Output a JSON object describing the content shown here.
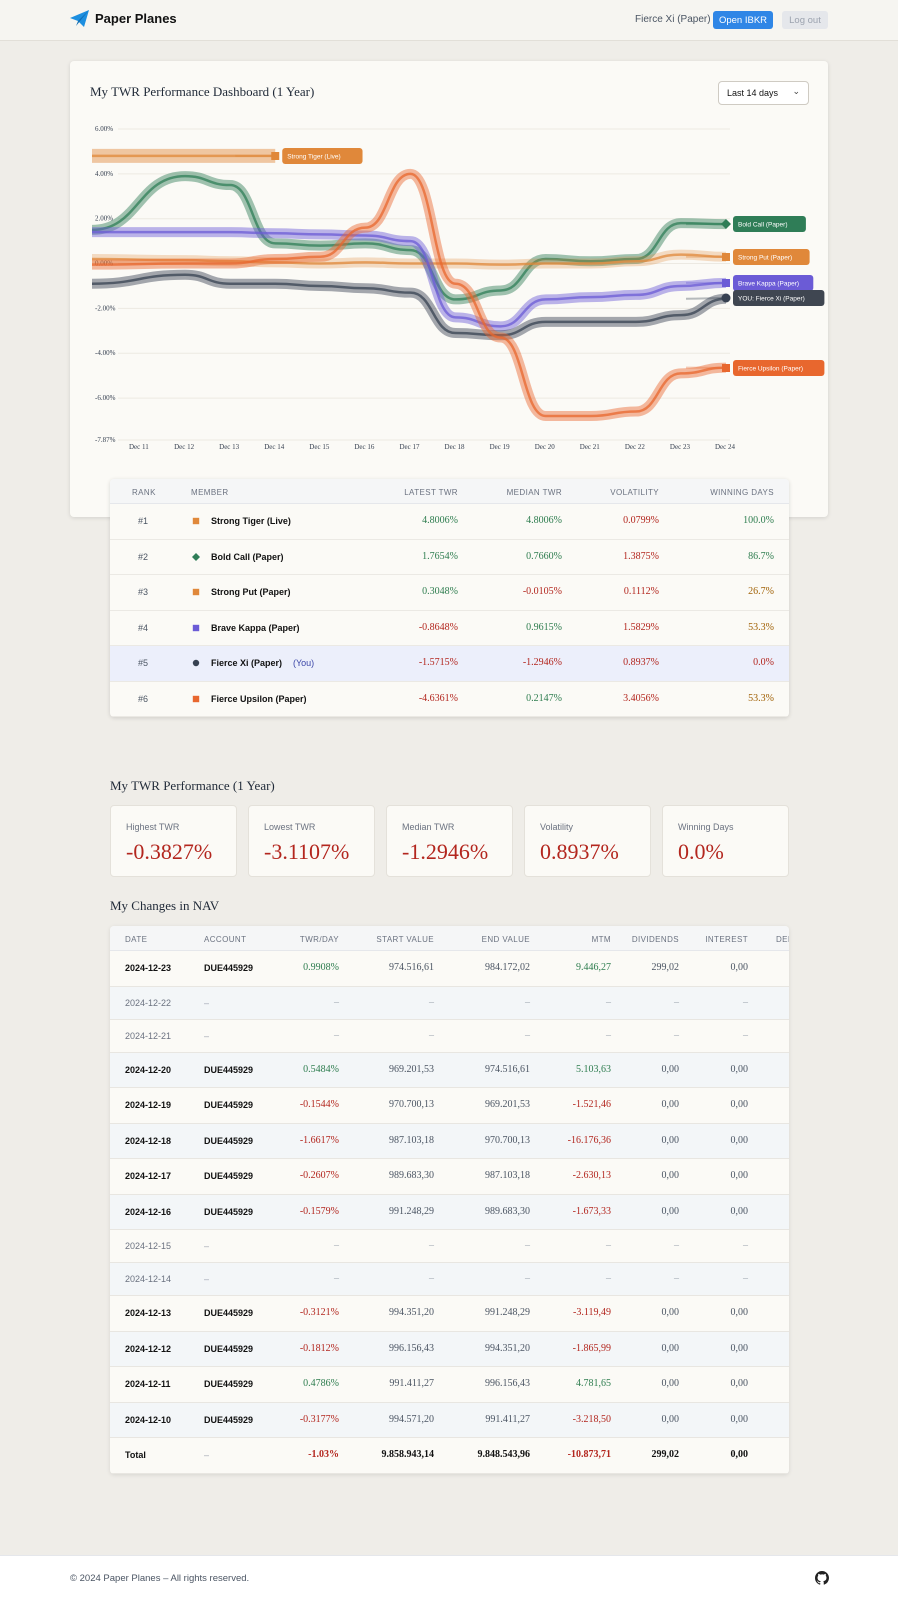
{
  "header": {
    "brand": "Paper Planes",
    "user": "Fierce Xi (Paper)",
    "open_button": "Open IBKR",
    "logout_button": "Log out"
  },
  "dashboard": {
    "title": "My TWR Performance Dashboard (1 Year)",
    "range_select": "Last 14 days"
  },
  "chart_data": {
    "type": "line",
    "title": "",
    "x": [
      "Dec 11",
      "Dec 12",
      "Dec 13",
      "Dec 14",
      "Dec 15",
      "Dec 16",
      "Dec 17",
      "Dec 18",
      "Dec 19",
      "Dec 20",
      "Dec 21",
      "Dec 22",
      "Dec 23",
      "Dec 24"
    ],
    "y_ticks": [
      "6.00%",
      "4.00%",
      "2.00%",
      "0.00%",
      "-2.00%",
      "-4.00%",
      "-6.00%",
      "-7.87%"
    ],
    "ylim": [
      -7.87,
      6.0
    ],
    "series": [
      {
        "name": "Strong Tiger (Live)",
        "color": "#e0883a",
        "marker": "square",
        "values": [
          4.8,
          4.8,
          4.8,
          4.8,
          null,
          null,
          null,
          null,
          null,
          null,
          null,
          null,
          null,
          null
        ]
      },
      {
        "name": "Bold Call (Paper)",
        "color": "#2f7d57",
        "marker": "diamond",
        "values": [
          1.5,
          3.9,
          3.5,
          0.9,
          0.8,
          0.9,
          0.6,
          -1.6,
          -1.2,
          0.2,
          0.1,
          0.2,
          1.8,
          1.76
        ]
      },
      {
        "name": "Strong Put (Paper)",
        "color": "#e0883a",
        "marker": "square",
        "values": [
          0.2,
          0.15,
          0.1,
          0.05,
          0.0,
          0.05,
          0.0,
          0.0,
          -0.05,
          0.0,
          0.0,
          0.1,
          0.4,
          0.3
        ]
      },
      {
        "name": "Brave Kappa (Paper)",
        "color": "#6b5bd6",
        "marker": "square",
        "values": [
          1.4,
          1.4,
          1.4,
          1.35,
          1.3,
          1.25,
          1.0,
          -2.4,
          -2.8,
          -1.6,
          -1.5,
          -1.4,
          -1.0,
          -0.86
        ]
      },
      {
        "name": "YOU: Fierce Xi (Paper)",
        "color": "#374151",
        "marker": "circle",
        "values": [
          -0.9,
          -0.5,
          -0.9,
          -0.9,
          -1.0,
          -1.1,
          -1.3,
          -3.1,
          -3.2,
          -2.6,
          -2.6,
          -2.6,
          -2.3,
          -1.57
        ]
      },
      {
        "name": "Fierce Upsilon (Paper)",
        "color": "#e8672e",
        "marker": "square",
        "values": [
          -0.05,
          0.0,
          0.0,
          0.2,
          0.3,
          1.6,
          4.0,
          -0.9,
          -3.3,
          -6.8,
          -6.8,
          -6.6,
          -4.9,
          -4.64
        ]
      }
    ]
  },
  "leaderboard": {
    "headers": {
      "rank": "RANK",
      "member": "MEMBER",
      "latest": "LATEST TWR",
      "median": "MEDIAN TWR",
      "vol": "VOLATILITY",
      "winning": "WINNING DAYS"
    },
    "rows": [
      {
        "rank": "#1",
        "member": "Strong Tiger (Live)",
        "you": "",
        "latest": "4.8006%",
        "median": "4.8006%",
        "vol": "0.0799%",
        "winning": "100.0%",
        "color": "#e0883a",
        "marker": "square"
      },
      {
        "rank": "#2",
        "member": "Bold Call (Paper)",
        "you": "",
        "latest": "1.7654%",
        "median": "0.7660%",
        "vol": "1.3875%",
        "winning": "86.7%",
        "color": "#2f7d57",
        "marker": "diamond"
      },
      {
        "rank": "#3",
        "member": "Strong Put (Paper)",
        "you": "",
        "latest": "0.3048%",
        "median": "-0.0105%",
        "vol": "0.1112%",
        "winning": "26.7%",
        "color": "#e0883a",
        "marker": "square"
      },
      {
        "rank": "#4",
        "member": "Brave Kappa (Paper)",
        "you": "",
        "latest": "-0.8648%",
        "median": "0.9615%",
        "vol": "1.5829%",
        "winning": "53.3%",
        "color": "#6b5bd6",
        "marker": "square"
      },
      {
        "rank": "#5",
        "member": "Fierce Xi (Paper)",
        "you": "(You)",
        "latest": "-1.5715%",
        "median": "-1.2946%",
        "vol": "0.8937%",
        "winning": "0.0%",
        "color": "#374151",
        "marker": "circle"
      },
      {
        "rank": "#6",
        "member": "Fierce Upsilon (Paper)",
        "you": "",
        "latest": "-4.6361%",
        "median": "0.2147%",
        "vol": "3.4056%",
        "winning": "53.3%",
        "color": "#e8672e",
        "marker": "square"
      }
    ]
  },
  "summary": {
    "title": "My TWR Performance (1 Year)",
    "stats": [
      {
        "label": "Highest TWR",
        "value": "-0.3827%"
      },
      {
        "label": "Lowest TWR",
        "value": "-3.1107%"
      },
      {
        "label": "Median TWR",
        "value": "-1.2946%"
      },
      {
        "label": "Volatility",
        "value": "0.8937%"
      },
      {
        "label": "Winning Days",
        "value": "0.0%"
      }
    ]
  },
  "nav": {
    "title": "My Changes in NAV",
    "headers": {
      "date": "DATE",
      "account": "ACCOUNT",
      "twr": "TWR/DAY",
      "start": "START VALUE",
      "end": "END VALUE",
      "mtm": "MTM",
      "div": "DIVIDENDS",
      "int": "INTEREST",
      "extra": "DEI"
    },
    "rows": [
      {
        "date": "2024-12-23",
        "account": "DUE445929",
        "twr": "0.9908%",
        "start": "974.516,61",
        "end": "984.172,02",
        "mtm": "9.446,27",
        "div": "299,02",
        "int": "0,00"
      },
      {
        "date": "2024-12-22",
        "account": "–",
        "twr": "–",
        "start": "–",
        "end": "–",
        "mtm": "–",
        "div": "–",
        "int": "–"
      },
      {
        "date": "2024-12-21",
        "account": "–",
        "twr": "–",
        "start": "–",
        "end": "–",
        "mtm": "–",
        "div": "–",
        "int": "–"
      },
      {
        "date": "2024-12-20",
        "account": "DUE445929",
        "twr": "0.5484%",
        "start": "969.201,53",
        "end": "974.516,61",
        "mtm": "5.103,63",
        "div": "0,00",
        "int": "0,00"
      },
      {
        "date": "2024-12-19",
        "account": "DUE445929",
        "twr": "-0.1544%",
        "start": "970.700,13",
        "end": "969.201,53",
        "mtm": "-1.521,46",
        "div": "0,00",
        "int": "0,00"
      },
      {
        "date": "2024-12-18",
        "account": "DUE445929",
        "twr": "-1.6617%",
        "start": "987.103,18",
        "end": "970.700,13",
        "mtm": "-16.176,36",
        "div": "0,00",
        "int": "0,00"
      },
      {
        "date": "2024-12-17",
        "account": "DUE445929",
        "twr": "-0.2607%",
        "start": "989.683,30",
        "end": "987.103,18",
        "mtm": "-2.630,13",
        "div": "0,00",
        "int": "0,00"
      },
      {
        "date": "2024-12-16",
        "account": "DUE445929",
        "twr": "-0.1579%",
        "start": "991.248,29",
        "end": "989.683,30",
        "mtm": "-1.673,33",
        "div": "0,00",
        "int": "0,00"
      },
      {
        "date": "2024-12-15",
        "account": "–",
        "twr": "–",
        "start": "–",
        "end": "–",
        "mtm": "–",
        "div": "–",
        "int": "–"
      },
      {
        "date": "2024-12-14",
        "account": "–",
        "twr": "–",
        "start": "–",
        "end": "–",
        "mtm": "–",
        "div": "–",
        "int": "–"
      },
      {
        "date": "2024-12-13",
        "account": "DUE445929",
        "twr": "-0.3121%",
        "start": "994.351,20",
        "end": "991.248,29",
        "mtm": "-3.119,49",
        "div": "0,00",
        "int": "0,00"
      },
      {
        "date": "2024-12-12",
        "account": "DUE445929",
        "twr": "-0.1812%",
        "start": "996.156,43",
        "end": "994.351,20",
        "mtm": "-1.865,99",
        "div": "0,00",
        "int": "0,00"
      },
      {
        "date": "2024-12-11",
        "account": "DUE445929",
        "twr": "0.4786%",
        "start": "991.411,27",
        "end": "996.156,43",
        "mtm": "4.781,65",
        "div": "0,00",
        "int": "0,00"
      },
      {
        "date": "2024-12-10",
        "account": "DUE445929",
        "twr": "-0.3177%",
        "start": "994.571,20",
        "end": "991.411,27",
        "mtm": "-3.218,50",
        "div": "0,00",
        "int": "0,00"
      }
    ],
    "total": {
      "date": "Total",
      "account": "–",
      "twr": "-1.03%",
      "start": "9.858.943,14",
      "end": "9.848.543,96",
      "mtm": "-10.873,71",
      "div": "299,02",
      "int": "0,00"
    }
  },
  "footer": {
    "copyright": "© 2024 Paper Planes – All rights reserved.",
    "icon": "github-icon"
  }
}
